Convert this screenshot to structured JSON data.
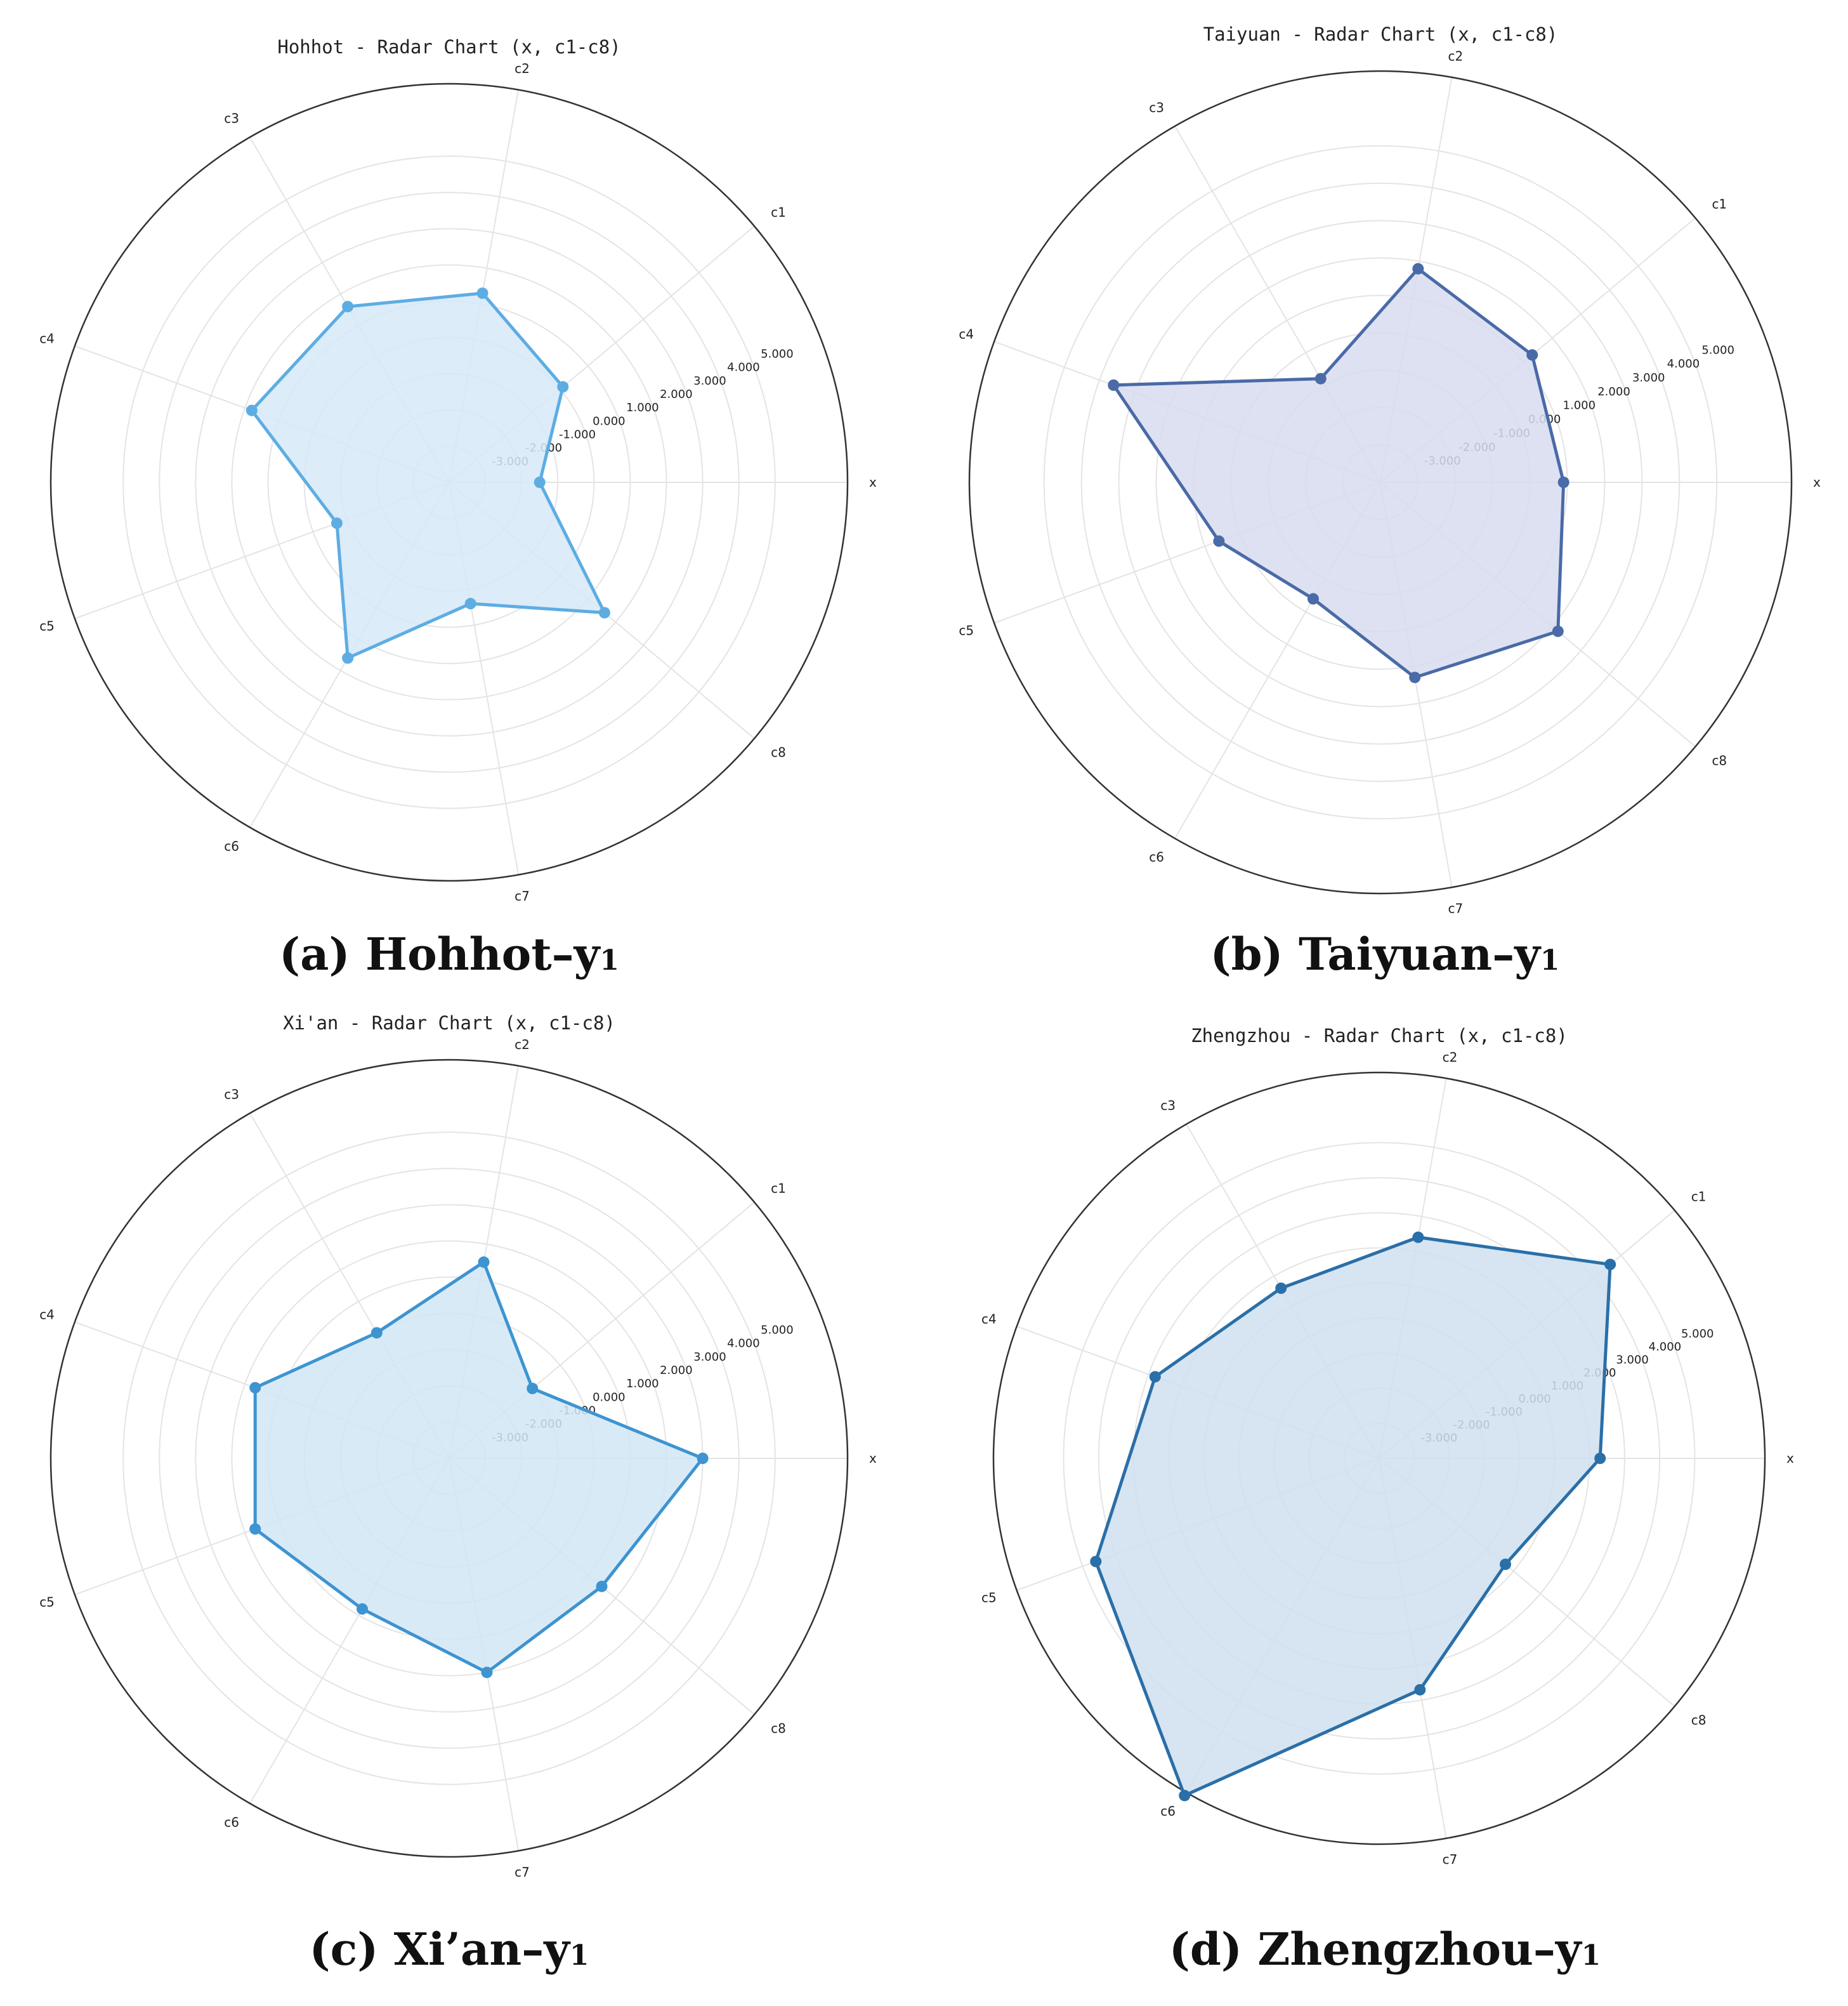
{
  "chart_data": [
    {
      "type": "radar",
      "title": "Hohhot - Radar Chart (x, c1-c8)",
      "caption_main": "(a) Hohhot–y",
      "caption_sub": "1",
      "axes": [
        "x",
        "c1",
        "c2",
        "c3",
        "c4",
        "c5",
        "c6",
        "c7",
        "c8"
      ],
      "values": [
        -1.5,
        0.1,
        1.3,
        1.6,
        1.8,
        -0.7,
        1.6,
        -0.6,
        1.6
      ],
      "rlim": [
        -4,
        7
      ],
      "tick_values": [
        -3,
        -2,
        -1,
        0,
        1,
        2,
        3,
        4,
        5
      ],
      "tick_labels": [
        "-3.000",
        "-2.000",
        "-1.000",
        "0.000",
        "1.000",
        "2.000",
        "3.000",
        "4.000",
        "5.000"
      ],
      "color": "#5dade2",
      "fill": "#d6e9f8",
      "grid": true
    },
    {
      "type": "radar",
      "title": "Taiyuan - Radar Chart (x, c1-c8)",
      "caption_main": "(b) Taiyuan–y",
      "caption_sub": "1",
      "axes": [
        "x",
        "c1",
        "c2",
        "c3",
        "c4",
        "c5",
        "c6",
        "c7",
        "c8"
      ],
      "values": [
        0.9,
        1.3,
        1.8,
        -0.8,
        3.6,
        0.6,
        -0.4,
        1.3,
        2.2
      ],
      "rlim": [
        -4,
        7
      ],
      "tick_values": [
        -3,
        -2,
        -1,
        0,
        1,
        2,
        3,
        4,
        5
      ],
      "tick_labels": [
        "-3.000",
        "-2.000",
        "-1.000",
        "0.000",
        "1.000",
        "2.000",
        "3.000",
        "4.000",
        "5.000"
      ],
      "color": "#4a6aa8",
      "fill": "#d8dcee",
      "grid": true
    },
    {
      "type": "radar",
      "title": "Xi'an - Radar Chart (x, c1-c8)",
      "caption_main": "(c) Xi’an–y",
      "caption_sub": "1",
      "axes": [
        "x",
        "c1",
        "c2",
        "c3",
        "c4",
        "c5",
        "c6",
        "c7",
        "c8"
      ],
      "values": [
        3.0,
        -1.0,
        1.5,
        0.0,
        1.7,
        1.7,
        0.8,
        2.0,
        1.5
      ],
      "rlim": [
        -4,
        7
      ],
      "tick_values": [
        -3,
        -2,
        -1,
        0,
        1,
        2,
        3,
        4,
        5
      ],
      "tick_labels": [
        "-3.000",
        "-2.000",
        "-1.000",
        "0.000",
        "1.000",
        "2.000",
        "3.000",
        "4.000",
        "5.000"
      ],
      "color": "#3d94d1",
      "fill": "#d2e6f6",
      "grid": true
    },
    {
      "type": "radar",
      "title": "Zhengzhou - Radar Chart (x, c1-c8)",
      "caption_main": "(d) Zhengzhou–y",
      "caption_sub": "1",
      "axes": [
        "x",
        "c1",
        "c2",
        "c3",
        "c4",
        "c5",
        "c6",
        "c7",
        "c8"
      ],
      "values": [
        2.3,
        4.6,
        2.4,
        1.6,
        2.8,
        4.6,
        7.1,
        2.7,
        0.7
      ],
      "rlim": [
        -4,
        7
      ],
      "tick_values": [
        -3,
        -2,
        -1,
        0,
        1,
        2,
        3,
        4,
        5
      ],
      "tick_labels": [
        "-3.000",
        "-2.000",
        "-1.000",
        "0.000",
        "1.000",
        "2.000",
        "3.000",
        "4.000",
        "5.000"
      ],
      "color": "#2a6fa8",
      "fill": "#cfe0ee",
      "grid": true
    }
  ]
}
